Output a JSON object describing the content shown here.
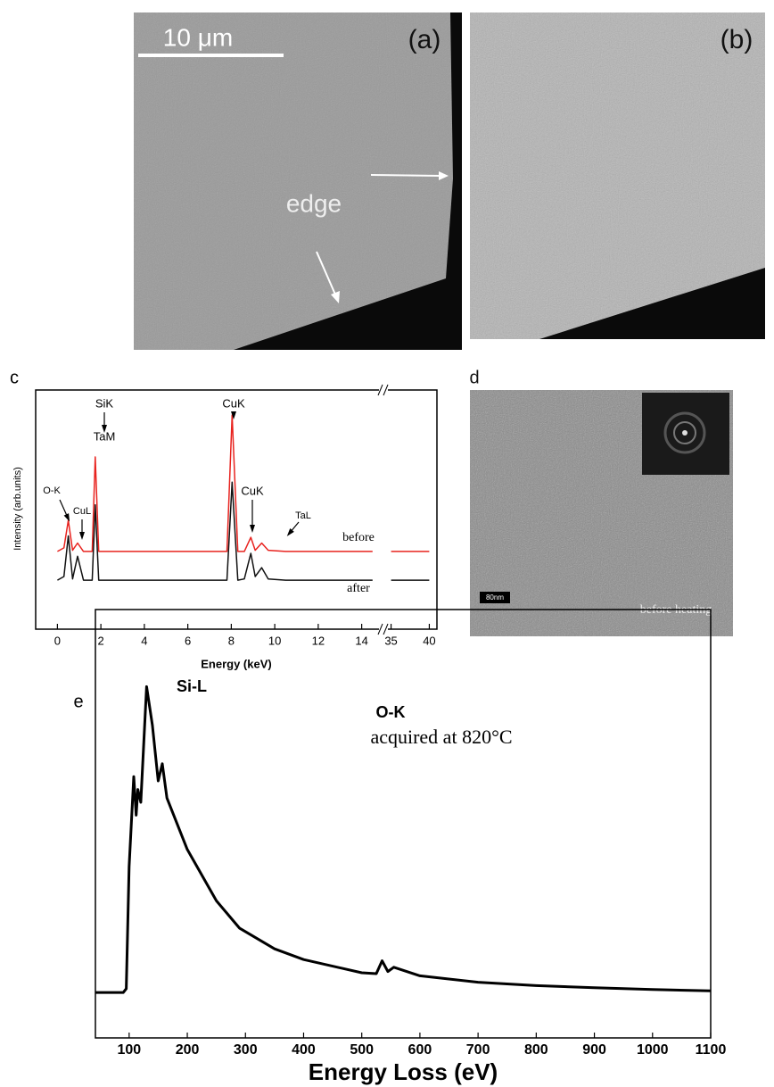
{
  "panels": {
    "a": {
      "label": "(a)",
      "scale_bar": "10 μm",
      "annotation": "edge"
    },
    "b": {
      "label": "(b)"
    },
    "d": {
      "label": "d",
      "scale_bar": "80nm",
      "annotation": "before heating"
    }
  },
  "chart_data": [
    {
      "type": "line",
      "panel_label": "c",
      "x_label": "Energy (keV)",
      "y_label": "Intensity (arb.units)",
      "x": [
        0,
        0.3,
        0.5,
        0.7,
        0.93,
        1.2,
        1.6,
        1.74,
        1.9,
        3,
        5,
        7,
        7.8,
        8.04,
        8.3,
        8.6,
        8.9,
        9.1,
        9.4,
        9.7,
        10.5,
        12,
        14.5,
        15,
        35,
        40
      ],
      "series": [
        {
          "name": "before",
          "color": "#e8231f",
          "values": [
            32.5,
            34,
            45.5,
            33,
            36,
            32.5,
            32.5,
            72,
            32.5,
            32.5,
            32.5,
            32.5,
            32.5,
            89.5,
            32.5,
            32.5,
            38.4,
            33,
            36,
            33,
            32.5,
            32.5,
            32.5,
            null,
            32.5,
            32.5
          ]
        },
        {
          "name": "after",
          "color": "#111111",
          "values": [
            20.5,
            22,
            39,
            21,
            30.5,
            20.5,
            20.5,
            52,
            20.5,
            20.5,
            20.5,
            20.5,
            20.5,
            61.5,
            20.5,
            21,
            31.7,
            22,
            25.7,
            21,
            20.5,
            20.5,
            20.5,
            null,
            20.5,
            20.5
          ]
        }
      ],
      "annotations": [
        "SiK",
        "TaM",
        "CuK",
        "O-K",
        "CuL",
        "CuK",
        "TaL"
      ],
      "xlim": [
        -1,
        41
      ],
      "axis_break": [
        15,
        34
      ],
      "xticks": [
        0,
        2,
        4,
        6,
        8,
        10,
        12,
        14,
        35,
        40
      ],
      "ylim": [
        0,
        100
      ]
    },
    {
      "type": "line",
      "panel_label": "e",
      "x_label": "Energy Loss (eV)",
      "x": [
        42,
        90,
        95,
        100,
        108,
        112,
        115,
        120,
        130,
        140,
        150,
        157,
        165,
        200,
        250,
        290,
        350,
        400,
        500,
        525,
        535,
        545,
        555,
        600,
        700,
        800,
        900,
        1000,
        1100
      ],
      "series": [
        {
          "name": null,
          "color": "#000000",
          "values": [
            10.6,
            10.6,
            11.5,
            40,
            61,
            52,
            58,
            55,
            82,
            73,
            60,
            64,
            56,
            44,
            32,
            25.6,
            20.8,
            18.3,
            15.2,
            15,
            18,
            15.5,
            16.5,
            14.5,
            13,
            12.2,
            11.7,
            11.3,
            11
          ]
        }
      ],
      "annotations": [
        "Si-L",
        "O-K",
        "acquired at 820°C"
      ],
      "xlim": [
        42,
        1100
      ],
      "xticks": [
        100,
        200,
        300,
        400,
        500,
        600,
        700,
        800,
        900,
        1000,
        1100
      ],
      "ylim": [
        0,
        100
      ]
    }
  ]
}
